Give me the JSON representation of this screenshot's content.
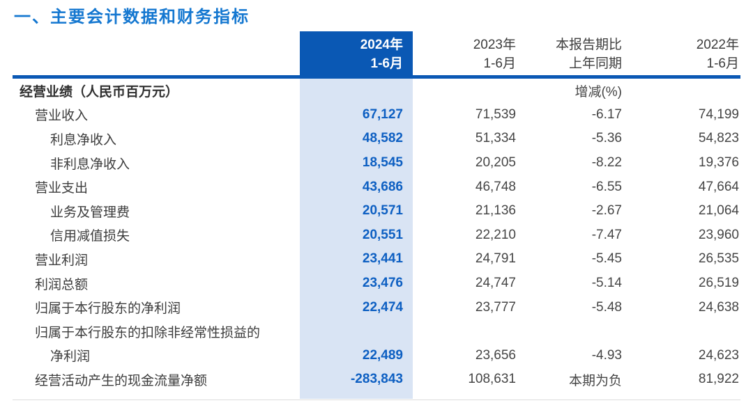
{
  "title": "一、主要会计数据和财务指标",
  "colors": {
    "title_blue": "#1477d0",
    "header_cell_blue": "#0a58b4",
    "highlight_column_blue": "#d9e4f4",
    "value_blue": "#0d5fc2",
    "body_text": "#3c3c3c"
  },
  "table": {
    "columns": [
      {
        "line1": "2024年",
        "line2": "1-6月",
        "highlighted": true
      },
      {
        "line1": "2023年",
        "line2": "1-6月",
        "highlighted": false
      },
      {
        "line1": "本报告期比",
        "line2": "上年同期",
        "highlighted": false
      },
      {
        "line1": "2022年",
        "line2": "1-6月",
        "highlighted": false
      }
    ],
    "rows": [
      {
        "label": "经营业绩（人民币百万元）",
        "indent": 0,
        "section": true,
        "v2024": "",
        "v2023": "",
        "change": "增减(%)",
        "v2022": ""
      },
      {
        "label": "营业收入",
        "indent": 1,
        "section": false,
        "v2024": "67,127",
        "v2023": "71,539",
        "change": "-6.17",
        "v2022": "74,199"
      },
      {
        "label": "利息净收入",
        "indent": 2,
        "section": false,
        "v2024": "48,582",
        "v2023": "51,334",
        "change": "-5.36",
        "v2022": "54,823"
      },
      {
        "label": "非利息净收入",
        "indent": 2,
        "section": false,
        "v2024": "18,545",
        "v2023": "20,205",
        "change": "-8.22",
        "v2022": "19,376"
      },
      {
        "label": "营业支出",
        "indent": 1,
        "section": false,
        "v2024": "43,686",
        "v2023": "46,748",
        "change": "-6.55",
        "v2022": "47,664"
      },
      {
        "label": "业务及管理费",
        "indent": 2,
        "section": false,
        "v2024": "20,571",
        "v2023": "21,136",
        "change": "-2.67",
        "v2022": "21,064"
      },
      {
        "label": "信用减值损失",
        "indent": 2,
        "section": false,
        "v2024": "20,551",
        "v2023": "22,210",
        "change": "-7.47",
        "v2022": "23,960"
      },
      {
        "label": "营业利润",
        "indent": 1,
        "section": false,
        "v2024": "23,441",
        "v2023": "24,791",
        "change": "-5.45",
        "v2022": "26,535"
      },
      {
        "label": "利润总额",
        "indent": 1,
        "section": false,
        "v2024": "23,476",
        "v2023": "24,747",
        "change": "-5.14",
        "v2022": "26,519"
      },
      {
        "label": "归属于本行股东的净利润",
        "indent": 1,
        "section": false,
        "v2024": "22,474",
        "v2023": "23,777",
        "change": "-5.48",
        "v2022": "24,638"
      },
      {
        "label": "归属于本行股东的扣除非经常性损益的",
        "indent": 1,
        "section": false,
        "v2024": "",
        "v2023": "",
        "change": "",
        "v2022": ""
      },
      {
        "label": "净利润",
        "indent": 2,
        "section": false,
        "v2024": "22,489",
        "v2023": "23,656",
        "change": "-4.93",
        "v2022": "24,623"
      },
      {
        "label": "经营活动产生的现金流量净额",
        "indent": 1,
        "section": false,
        "v2024": "-283,843",
        "v2023": "108,631",
        "change": "本期为负",
        "v2022": "81,922"
      }
    ]
  }
}
